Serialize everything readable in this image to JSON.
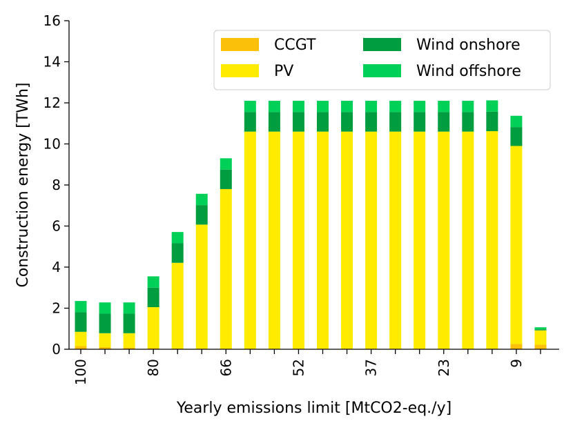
{
  "chart_data": {
    "type": "bar",
    "stacked": true,
    "xlabel": "Yearly emissions limit [MtCO2-eq./y]",
    "ylabel": "Construction energy [TWh]",
    "ylim": [
      0,
      16
    ],
    "yticks": [
      0,
      2,
      4,
      6,
      8,
      10,
      12,
      14,
      16
    ],
    "categories": [
      "100",
      "",
      "",
      "80",
      "",
      "",
      "66",
      "",
      "",
      "52",
      "",
      "",
      "37",
      "",
      "",
      "23",
      "",
      "",
      "9",
      ""
    ],
    "series": [
      {
        "name": "CCGT",
        "color": "#fbc00a",
        "values": [
          0.15,
          0.1,
          0.08,
          0.05,
          0.03,
          0.02,
          0.02,
          0.02,
          0.02,
          0.02,
          0.02,
          0.02,
          0.02,
          0.02,
          0.02,
          0.02,
          0.02,
          0.02,
          0.25,
          0.22
        ]
      },
      {
        "name": "PV",
        "color": "#ffeb00",
        "values": [
          0.7,
          0.68,
          0.7,
          2.0,
          4.18,
          6.05,
          7.78,
          10.58,
          10.58,
          10.58,
          10.58,
          10.58,
          10.58,
          10.58,
          10.58,
          10.58,
          10.58,
          10.6,
          9.65,
          0.7
        ]
      },
      {
        "name": "Wind onshore",
        "color": "#009c40",
        "values": [
          0.95,
          0.95,
          0.95,
          0.95,
          0.95,
          0.95,
          0.95,
          0.95,
          0.95,
          0.95,
          0.95,
          0.95,
          0.95,
          0.95,
          0.95,
          0.95,
          0.95,
          0.95,
          0.92,
          0.05
        ]
      },
      {
        "name": "Wind offshore",
        "color": "#00d057",
        "values": [
          0.55,
          0.55,
          0.55,
          0.55,
          0.55,
          0.55,
          0.55,
          0.55,
          0.55,
          0.55,
          0.55,
          0.55,
          0.55,
          0.55,
          0.55,
          0.55,
          0.55,
          0.55,
          0.55,
          0.1
        ]
      }
    ],
    "legend": {
      "placement": "top-right",
      "columns": 2
    }
  }
}
